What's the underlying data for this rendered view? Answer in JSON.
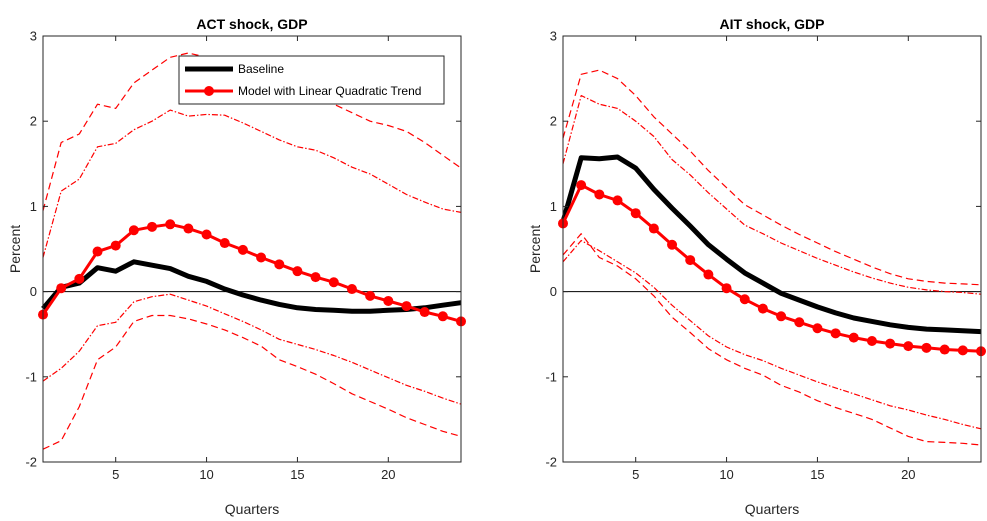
{
  "chart_data": [
    {
      "type": "line",
      "title": "ACT shock, GDP",
      "xlabel": "Quarters",
      "ylabel": "Percent",
      "xlim": [
        1,
        24
      ],
      "ylim": [
        -2,
        3
      ],
      "xticks": [
        5,
        10,
        15,
        20
      ],
      "yticks": [
        -2,
        -1,
        0,
        1,
        2,
        3
      ],
      "grid": false,
      "zero_line": true,
      "legend": {
        "placement": "top-right",
        "entries": [
          "Baseline",
          "Model with Linear Quadratic Trend"
        ]
      },
      "x": [
        1,
        2,
        3,
        4,
        5,
        6,
        7,
        8,
        9,
        10,
        11,
        12,
        13,
        14,
        15,
        16,
        17,
        18,
        19,
        20,
        21,
        22,
        23,
        24
      ],
      "series": [
        {
          "name": "Baseline",
          "color": "#000000",
          "style": "solid-thick",
          "values": [
            -0.2,
            0.05,
            0.1,
            0.28,
            0.24,
            0.35,
            0.31,
            0.27,
            0.18,
            0.12,
            0.03,
            -0.04,
            -0.1,
            -0.15,
            -0.19,
            -0.21,
            -0.22,
            -0.23,
            -0.23,
            -0.22,
            -0.21,
            -0.19,
            -0.16,
            -0.13
          ]
        },
        {
          "name": "Model with Linear Quadratic Trend",
          "color": "#ff0000",
          "style": "solid-markers",
          "values": [
            -0.27,
            0.04,
            0.15,
            0.47,
            0.54,
            0.72,
            0.76,
            0.79,
            0.74,
            0.67,
            0.57,
            0.49,
            0.4,
            0.32,
            0.24,
            0.17,
            0.11,
            0.03,
            -0.05,
            -0.11,
            -0.17,
            -0.24,
            -0.29,
            -0.35
          ]
        },
        {
          "style": "dash-dot",
          "color": "#ff0000",
          "values": [
            0.4,
            1.18,
            1.32,
            1.7,
            1.74,
            1.9,
            2.0,
            2.13,
            2.06,
            2.08,
            2.07,
            1.98,
            1.88,
            1.78,
            1.7,
            1.66,
            1.57,
            1.46,
            1.38,
            1.26,
            1.14,
            1.05,
            0.97,
            0.93
          ]
        },
        {
          "style": "dashed",
          "color": "#ff0000",
          "values": [
            0.95,
            1.75,
            1.85,
            2.2,
            2.15,
            2.45,
            2.6,
            2.75,
            2.8,
            2.75,
            2.7,
            2.6,
            2.5,
            2.4,
            2.35,
            2.3,
            2.2,
            2.1,
            2.0,
            1.95,
            1.88,
            1.75,
            1.6,
            1.45
          ]
        },
        {
          "style": "dash-dot",
          "color": "#ff0000",
          "values": [
            -1.05,
            -0.9,
            -0.7,
            -0.4,
            -0.36,
            -0.12,
            -0.06,
            -0.03,
            -0.1,
            -0.17,
            -0.26,
            -0.35,
            -0.45,
            -0.56,
            -0.62,
            -0.68,
            -0.75,
            -0.83,
            -0.92,
            -1.01,
            -1.1,
            -1.17,
            -1.25,
            -1.32
          ]
        },
        {
          "style": "dashed",
          "color": "#ff0000",
          "values": [
            -1.85,
            -1.75,
            -1.35,
            -0.8,
            -0.65,
            -0.35,
            -0.28,
            -0.28,
            -0.32,
            -0.38,
            -0.45,
            -0.54,
            -0.64,
            -0.8,
            -0.88,
            -0.97,
            -1.08,
            -1.2,
            -1.29,
            -1.38,
            -1.48,
            -1.56,
            -1.64,
            -1.7
          ]
        }
      ]
    },
    {
      "type": "line",
      "title": "AIT shock, GDP",
      "xlabel": "Quarters",
      "ylabel": "Percent",
      "xlim": [
        1,
        24
      ],
      "ylim": [
        -2,
        3
      ],
      "xticks": [
        5,
        10,
        15,
        20
      ],
      "yticks": [
        -2,
        -1,
        0,
        1,
        2,
        3
      ],
      "grid": false,
      "zero_line": true,
      "x": [
        1,
        2,
        3,
        4,
        5,
        6,
        7,
        8,
        9,
        10,
        11,
        12,
        13,
        14,
        15,
        16,
        17,
        18,
        19,
        20,
        21,
        22,
        23,
        24
      ],
      "series": [
        {
          "name": "Baseline",
          "color": "#000000",
          "style": "solid-thick",
          "values": [
            0.82,
            1.57,
            1.56,
            1.58,
            1.45,
            1.2,
            0.98,
            0.77,
            0.55,
            0.38,
            0.22,
            0.1,
            -0.02,
            -0.1,
            -0.18,
            -0.25,
            -0.31,
            -0.35,
            -0.39,
            -0.42,
            -0.44,
            -0.45,
            -0.46,
            -0.47
          ]
        },
        {
          "name": "Model with Linear Quadratic Trend",
          "color": "#ff0000",
          "style": "solid-markers",
          "values": [
            0.8,
            1.25,
            1.14,
            1.07,
            0.92,
            0.74,
            0.55,
            0.37,
            0.2,
            0.04,
            -0.09,
            -0.2,
            -0.29,
            -0.36,
            -0.43,
            -0.49,
            -0.54,
            -0.58,
            -0.61,
            -0.64,
            -0.66,
            -0.68,
            -0.69,
            -0.7
          ]
        },
        {
          "style": "dash-dot",
          "color": "#ff0000",
          "values": [
            1.5,
            2.3,
            2.2,
            2.15,
            2.0,
            1.82,
            1.55,
            1.37,
            1.16,
            0.97,
            0.78,
            0.68,
            0.57,
            0.48,
            0.39,
            0.31,
            0.23,
            0.16,
            0.1,
            0.05,
            0.02,
            0.0,
            -0.01,
            -0.03
          ]
        },
        {
          "style": "dashed",
          "color": "#ff0000",
          "values": [
            1.8,
            2.55,
            2.6,
            2.5,
            2.3,
            2.05,
            1.85,
            1.65,
            1.42,
            1.22,
            1.02,
            0.9,
            0.78,
            0.67,
            0.57,
            0.47,
            0.38,
            0.29,
            0.21,
            0.15,
            0.12,
            0.1,
            0.09,
            0.08
          ]
        },
        {
          "style": "dash-dot",
          "color": "#ff0000",
          "values": [
            0.35,
            0.6,
            0.48,
            0.35,
            0.22,
            0.05,
            -0.16,
            -0.34,
            -0.52,
            -0.65,
            -0.74,
            -0.81,
            -0.9,
            -0.98,
            -1.06,
            -1.13,
            -1.2,
            -1.27,
            -1.34,
            -1.39,
            -1.45,
            -1.5,
            -1.56,
            -1.61
          ]
        },
        {
          "style": "dashed",
          "color": "#ff0000",
          "values": [
            0.43,
            0.68,
            0.4,
            0.3,
            0.15,
            -0.05,
            -0.3,
            -0.48,
            -0.67,
            -0.8,
            -0.9,
            -0.98,
            -1.1,
            -1.18,
            -1.28,
            -1.36,
            -1.43,
            -1.5,
            -1.6,
            -1.7,
            -1.76,
            -1.77,
            -1.78,
            -1.8
          ]
        }
      ]
    }
  ]
}
